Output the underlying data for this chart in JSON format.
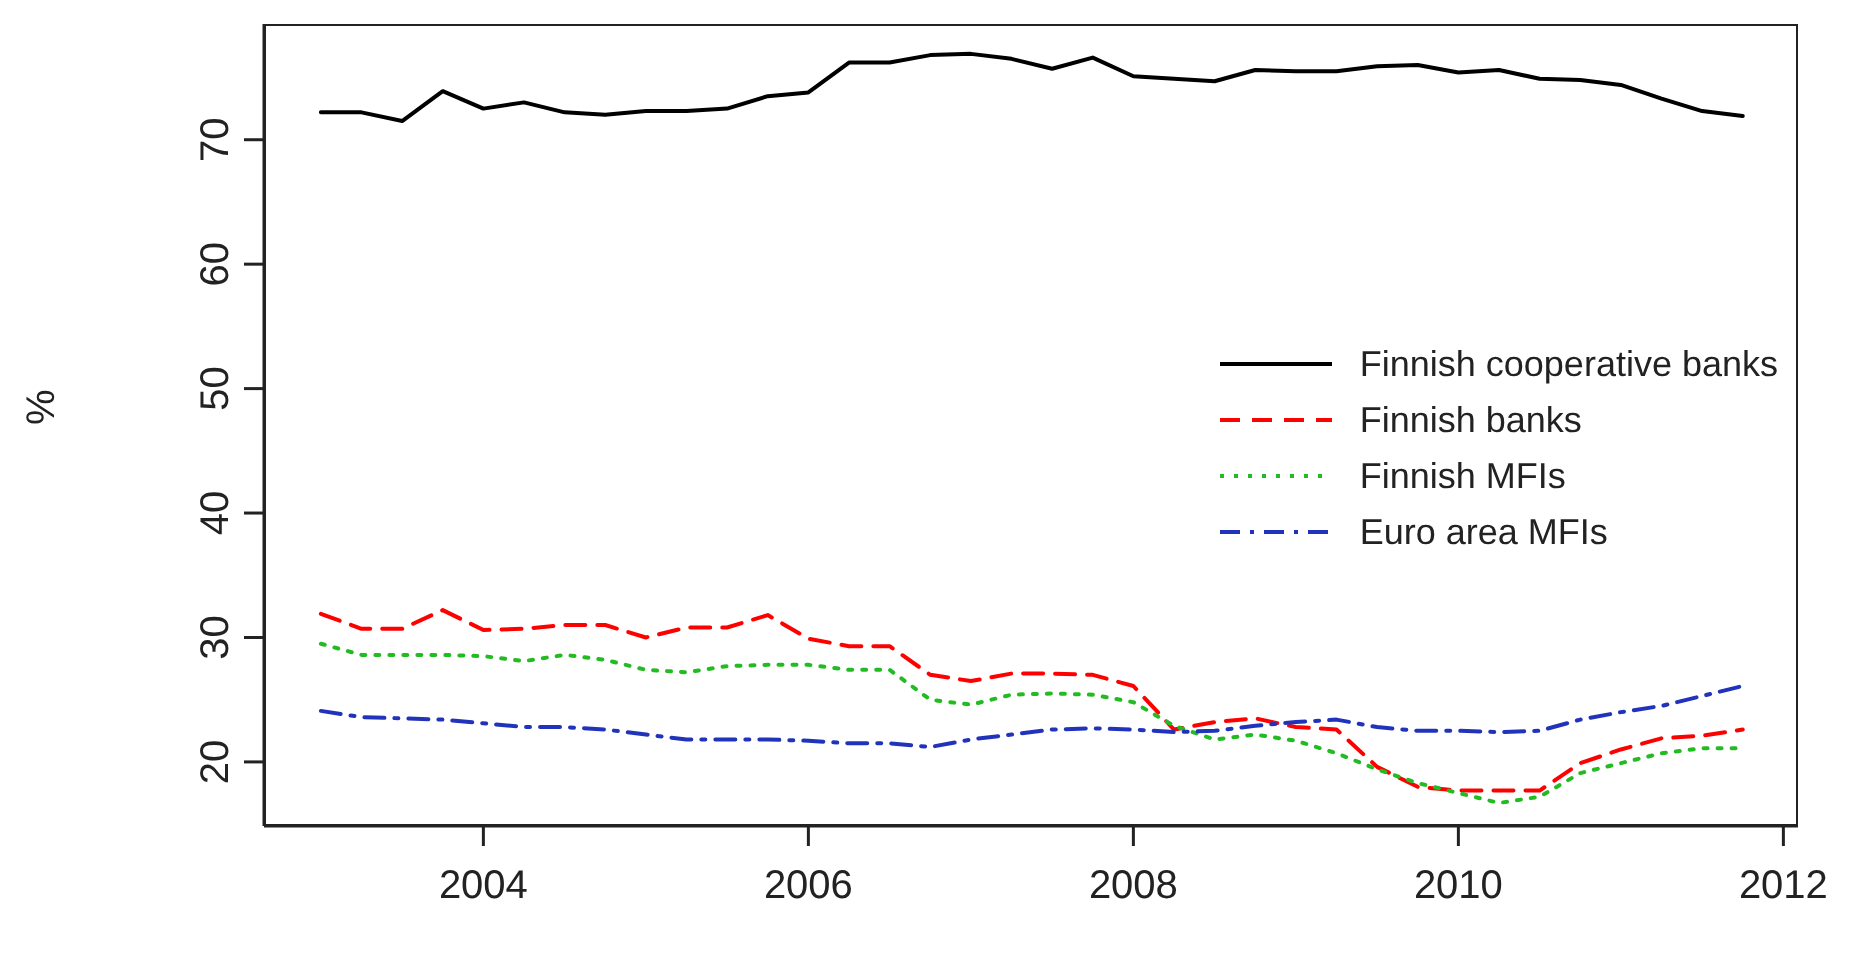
{
  "chart_data": {
    "type": "line",
    "ylabel": "%",
    "x": [
      2003,
      2003.25,
      2003.5,
      2003.75,
      2004,
      2004.25,
      2004.5,
      2004.75,
      2005,
      2005.25,
      2005.5,
      2005.75,
      2006,
      2006.25,
      2006.5,
      2006.75,
      2007,
      2007.25,
      2007.5,
      2007.75,
      2008,
      2008.25,
      2008.5,
      2008.75,
      2009,
      2009.25,
      2009.5,
      2009.75,
      2010,
      2010.25,
      2010.5,
      2010.75,
      2011,
      2011.25,
      2011.5,
      2011.75
    ],
    "series": [
      {
        "name": "Finnish cooperative banks",
        "color": "#000000",
        "line_style": "solid",
        "values": [
          72.2,
          72.2,
          71.5,
          73.9,
          72.5,
          73.0,
          72.2,
          72.0,
          72.3,
          72.3,
          72.5,
          73.5,
          73.8,
          76.2,
          76.2,
          76.8,
          76.9,
          76.5,
          75.7,
          76.6,
          75.1,
          74.9,
          74.7,
          75.6,
          75.5,
          75.5,
          75.9,
          76.0,
          75.4,
          75.6,
          74.9,
          74.8,
          74.4,
          73.3,
          72.3,
          71.9
        ]
      },
      {
        "name": "Finnish banks",
        "color": "#ff0000",
        "line_style": "dashed",
        "values": [
          31.9,
          30.7,
          30.7,
          32.2,
          30.6,
          30.7,
          31.0,
          31.0,
          30.0,
          30.8,
          30.8,
          31.8,
          29.9,
          29.3,
          29.3,
          27.0,
          26.5,
          27.1,
          27.1,
          27.0,
          26.1,
          22.6,
          23.2,
          23.5,
          22.8,
          22.6,
          19.6,
          18.0,
          17.7,
          17.7,
          17.7,
          19.9,
          21.0,
          21.9,
          22.1,
          22.6
        ]
      },
      {
        "name": "Finnish MFIs",
        "color": "#22bb22",
        "line_style": "dotted",
        "values": [
          29.5,
          28.6,
          28.6,
          28.6,
          28.5,
          28.1,
          28.6,
          28.2,
          27.4,
          27.2,
          27.7,
          27.8,
          27.8,
          27.4,
          27.4,
          25.0,
          24.6,
          25.4,
          25.5,
          25.4,
          24.8,
          22.9,
          21.8,
          22.2,
          21.7,
          20.7,
          19.4,
          18.3,
          17.5,
          16.7,
          17.2,
          19.1,
          19.9,
          20.7,
          21.1,
          21.1
        ]
      },
      {
        "name": "Euro area MFIs",
        "color": "#2233bb",
        "line_style": "dashdot",
        "values": [
          24.1,
          23.6,
          23.5,
          23.4,
          23.1,
          22.8,
          22.8,
          22.6,
          22.2,
          21.8,
          21.8,
          21.8,
          21.7,
          21.5,
          21.5,
          21.2,
          21.8,
          22.2,
          22.6,
          22.7,
          22.6,
          22.4,
          22.5,
          22.9,
          23.2,
          23.4,
          22.8,
          22.5,
          22.5,
          22.4,
          22.5,
          23.4,
          24.0,
          24.5,
          25.3,
          26.1
        ]
      }
    ],
    "xlim": [
      2002.65,
      2012.09
    ],
    "xticks": [
      2004,
      2006,
      2008,
      2010,
      2012
    ],
    "ylim": [
      14.85,
      79.3
    ],
    "yticks": [
      20,
      30,
      40,
      50,
      60,
      70
    ],
    "legend": "right",
    "marker": "none"
  }
}
